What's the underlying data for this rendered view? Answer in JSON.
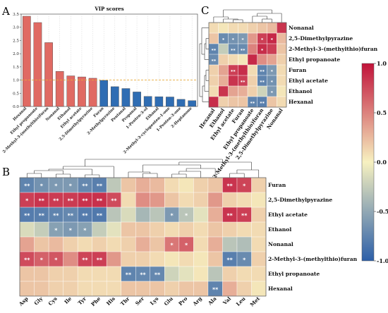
{
  "panels": {
    "a": "A",
    "b": "B",
    "c": "C"
  },
  "chart_data": [
    {
      "type": "bar",
      "title": "VIP scores",
      "categories": [
        "Hexanal",
        "Ethyl propanoate",
        "2-Methyl-3-(methylthio)furan",
        "Nonanal",
        "Ethanol",
        "Ethyl acetate",
        "2,5-Dimethylpyrazine",
        "Furan",
        "2-Methylpyrazine",
        "Pentanal",
        "Propanal",
        "1-Penten-3-ol",
        "Ethanal",
        "2-Methyl-3-cyclopenten-1-one",
        "1-Penten-3-one",
        "2-Heptanone"
      ],
      "values": [
        3.42,
        3.18,
        2.42,
        1.33,
        1.16,
        1.12,
        1.07,
        0.99,
        0.75,
        0.68,
        0.55,
        0.38,
        0.37,
        0.36,
        0.27,
        0.22
      ],
      "yticks": [
        "0.0",
        "0.5",
        "1.0",
        "1.5",
        "2.0",
        "2.5",
        "3.0",
        "3.5"
      ],
      "ylim": [
        0,
        3.5
      ],
      "threshold": 1.0,
      "colors": {
        "high": "#e06a63",
        "low": "#2f6db3",
        "threshold": "#e8a93a"
      }
    },
    {
      "type": "heatmap",
      "rows": [
        "Furan",
        "2,5-Dimethylpyrazine",
        "Ethyl acetate",
        "Ethanol",
        "Nonanal",
        "2-Methyl-3-(methylthio)furan",
        "Ethyl propanoate",
        "Hexanal"
      ],
      "cols": [
        "Asp",
        "Gly",
        "Cys",
        "Ile",
        "Tyr",
        "Phe",
        "His",
        "Thr",
        "Ser",
        "Lys",
        "Glu",
        "Pro",
        "Arg",
        "Ala",
        "Val",
        "Leu",
        "Met"
      ],
      "values": [
        [
          -0.75,
          -0.65,
          -0.6,
          -0.6,
          -0.72,
          -0.78,
          -0.28,
          0.2,
          0.3,
          0.25,
          0.1,
          0.05,
          0.15,
          0.2,
          0.85,
          0.78,
          0.15
        ],
        [
          0.8,
          0.85,
          0.82,
          0.82,
          0.86,
          0.87,
          0.75,
          0.1,
          0.45,
          0.4,
          0.2,
          0.1,
          0.15,
          0.4,
          0.15,
          0.1,
          0.05
        ],
        [
          -0.8,
          -0.78,
          -0.75,
          -0.72,
          -0.8,
          -0.82,
          -0.3,
          -0.15,
          -0.4,
          -0.3,
          -0.6,
          -0.3,
          -0.1,
          0.3,
          0.85,
          0.8,
          0.15
        ],
        [
          -0.15,
          -0.25,
          -0.55,
          -0.6,
          -0.55,
          -0.25,
          -0.1,
          0.2,
          0.2,
          0.15,
          0.1,
          0.15,
          0.1,
          0.2,
          0.15,
          0.1,
          0.1
        ],
        [
          0.35,
          0.2,
          0.25,
          0.15,
          0.1,
          0.15,
          0.1,
          0.15,
          0.3,
          0.2,
          0.55,
          0.65,
          0.1,
          0.3,
          -0.3,
          -0.35,
          0.1
        ],
        [
          0.75,
          0.65,
          0.7,
          0.45,
          0.78,
          0.8,
          0.4,
          0.15,
          0.15,
          0.1,
          0.05,
          0.1,
          0.05,
          0.2,
          -0.78,
          -0.7,
          0.15
        ],
        [
          0.2,
          0.2,
          0.15,
          0.15,
          0.1,
          0.1,
          0.1,
          -0.75,
          -0.72,
          -0.72,
          -0.2,
          -0.1,
          0.05,
          -0.3,
          0.15,
          0.1,
          0.1
        ],
        [
          0.2,
          0.2,
          0.15,
          0.15,
          0.1,
          0.1,
          0.1,
          0.2,
          0.2,
          0.2,
          0.15,
          0.2,
          0.2,
          -0.75,
          0.3,
          0.15,
          0.05
        ]
      ],
      "stars": [
        [
          "**",
          "*",
          "*",
          "*",
          "**",
          "**",
          "",
          "",
          "",
          "",
          "",
          "",
          "",
          "",
          "**",
          "*",
          ""
        ],
        [
          "*",
          "**",
          "**",
          "**",
          "**",
          "**",
          "**",
          "",
          "",
          "",
          "",
          "",
          "",
          "",
          "",
          "",
          ""
        ],
        [
          "**",
          "**",
          "**",
          "**",
          "**",
          "**",
          "",
          "",
          "",
          "",
          "*",
          "*",
          "",
          "",
          "**",
          "**",
          ""
        ],
        [
          "",
          "",
          "*",
          "*",
          "*",
          "",
          "",
          "",
          "",
          "",
          "",
          "",
          "",
          "",
          "",
          "",
          ""
        ],
        [
          "",
          "",
          "",
          "",
          "",
          "",
          "",
          "",
          "",
          "",
          "*",
          "*",
          "",
          "",
          "",
          "",
          ""
        ],
        [
          "**",
          "*",
          "*",
          "",
          "**",
          "**",
          "",
          "",
          "",
          "",
          "",
          "",
          "",
          "",
          "**",
          "*",
          ""
        ],
        [
          "",
          "",
          "",
          "",
          "",
          "",
          "",
          "**",
          "**",
          "**",
          "",
          "",
          "",
          "",
          "",
          "",
          ""
        ],
        [
          "",
          "",
          "",
          "",
          "",
          "",
          "",
          "",
          "",
          "",
          "",
          "",
          "",
          "**",
          "",
          "",
          ""
        ]
      ]
    },
    {
      "type": "heatmap",
      "rows": [
        "Nonanal",
        "2,5-Dimethylpyrazine",
        "2-Methyl-3-(methylthio)furan",
        "Ethyl propanoate",
        "Furan",
        "Ethyl acetate",
        "Ethanol",
        "Hexanal"
      ],
      "cols": [
        "Hexanal",
        "Ethanol",
        "Ethyl acetate",
        "Furan",
        "Ethyl propanoate",
        "2-Methyl-3-(methylthio)furan",
        "2,5-Dimethylpyrazine",
        "Nonanal"
      ],
      "values": [
        [
          0.1,
          0.05,
          0.1,
          0.1,
          0.15,
          0.2,
          0.25,
          0.85
        ],
        [
          0.2,
          -0.7,
          -0.65,
          -0.6,
          0.4,
          0.8,
          0.9,
          0.25
        ],
        [
          -0.75,
          -0.25,
          -0.7,
          -0.7,
          0.5,
          0.88,
          0.8,
          0.2
        ],
        [
          -0.7,
          0.15,
          0.1,
          0.05,
          0.9,
          0.45,
          0.35,
          0.15
        ],
        [
          0.15,
          0.35,
          0.8,
          0.88,
          0.1,
          -0.75,
          -0.6,
          0.1
        ],
        [
          0.15,
          0.3,
          0.85,
          0.8,
          0.15,
          -0.75,
          -0.65,
          0.1
        ],
        [
          0.1,
          0.85,
          0.35,
          0.3,
          0.15,
          -0.2,
          -0.6,
          0.05
        ],
        [
          0.88,
          0.15,
          0.2,
          0.2,
          -0.75,
          -0.78,
          0.2,
          0.1
        ]
      ],
      "stars": [
        [
          "",
          "",
          "",
          "",
          "",
          "",
          "",
          ""
        ],
        [
          "",
          "*",
          "*",
          "*",
          "",
          "*",
          "*",
          ""
        ],
        [
          "**",
          "",
          "**",
          "**",
          "",
          "*",
          "",
          ""
        ],
        [
          "**",
          "",
          "",
          "",
          "",
          "",
          "",
          ""
        ],
        [
          "",
          "",
          "**",
          "",
          "",
          "**",
          "*",
          ""
        ],
        [
          "",
          "",
          "",
          "**",
          "",
          "**",
          "*",
          ""
        ],
        [
          "",
          "",
          "",
          "",
          "",
          "",
          "*",
          ""
        ],
        [
          "",
          "",
          "",
          "",
          "**",
          "**",
          "",
          ""
        ]
      ]
    },
    {
      "type": "colorbar",
      "ticks": [
        "1.0",
        "0.5",
        "0.0",
        "-0.5",
        "-1.0"
      ],
      "range": [
        -1,
        1
      ],
      "colors": {
        "negative": "#2c5fa8",
        "zero": "#f7f1c0",
        "positive": "#c1133a"
      }
    }
  ]
}
